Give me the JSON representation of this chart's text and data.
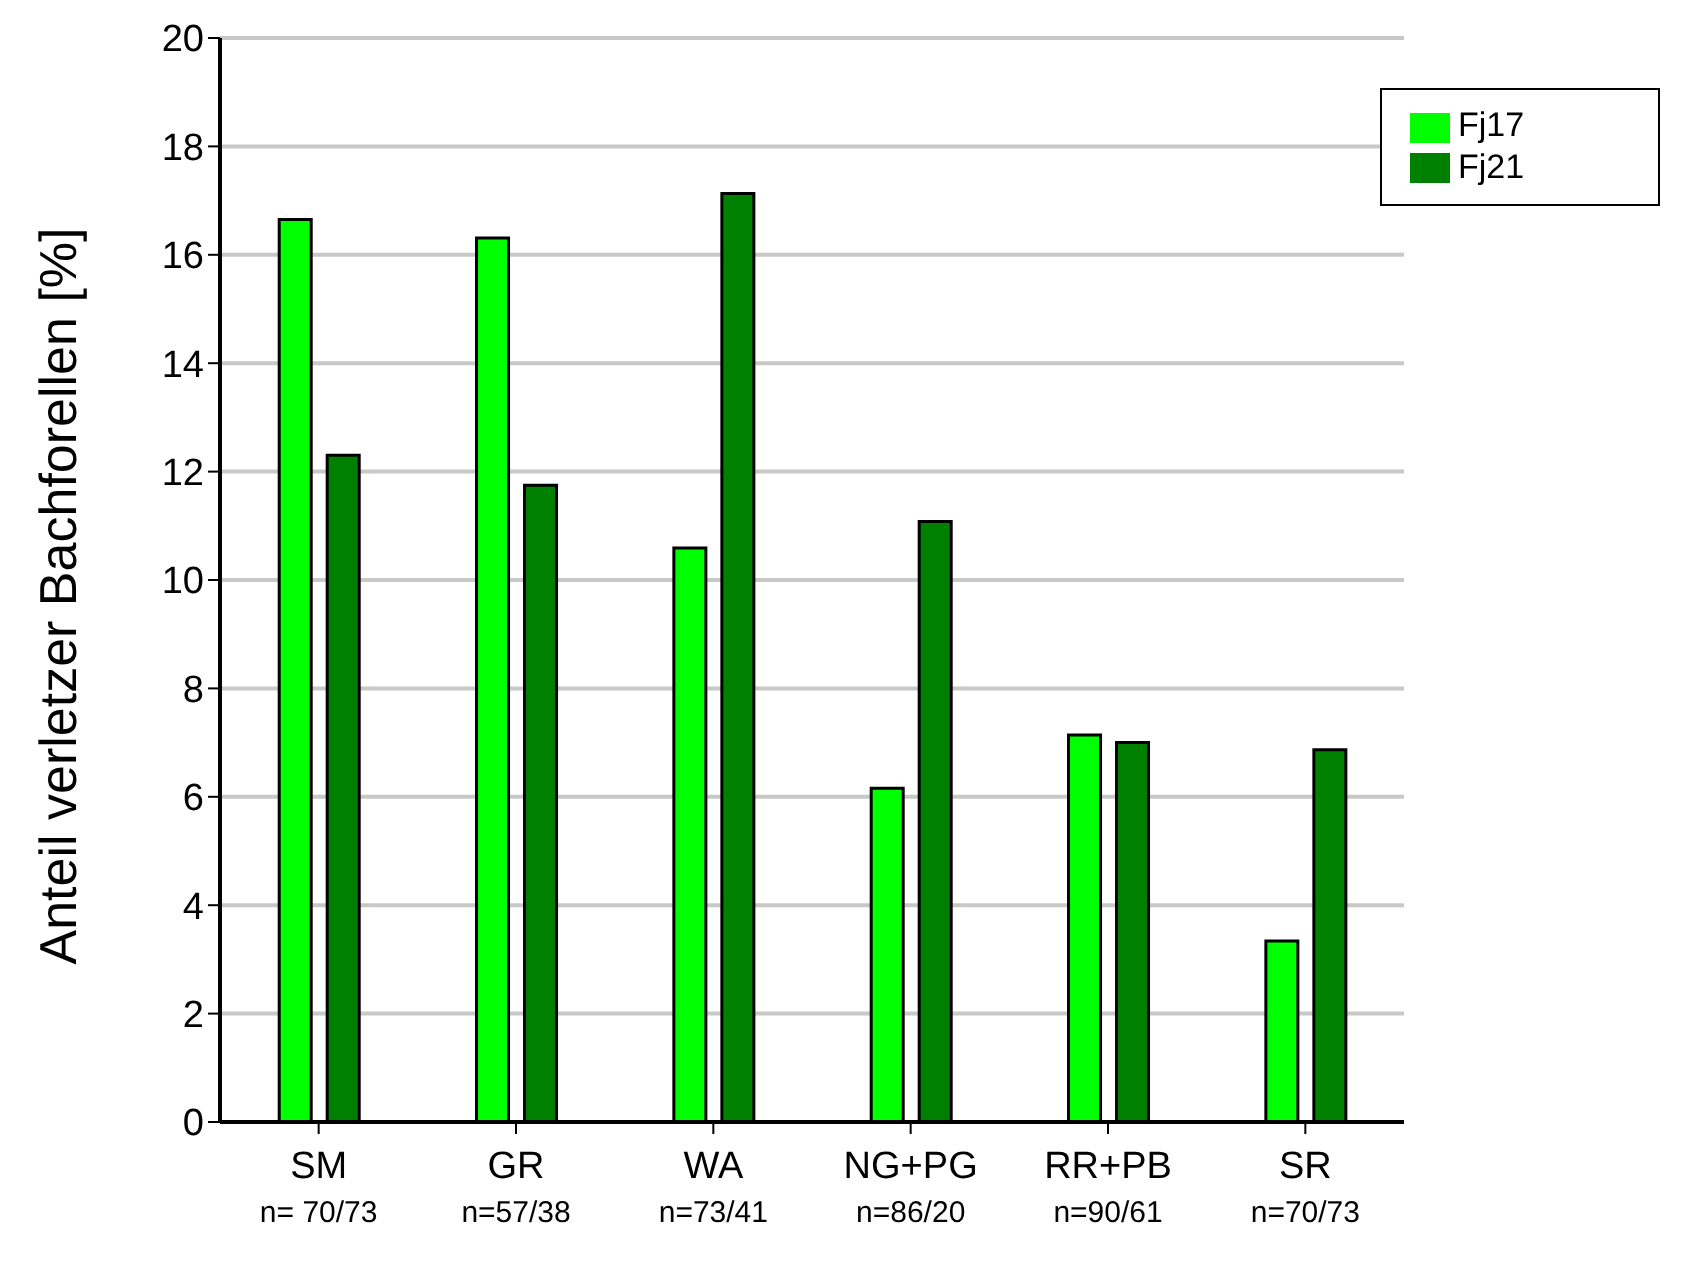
{
  "chart_data": {
    "type": "bar",
    "ylabel": "Anteil verletzer Bachforellen [%]",
    "categories": [
      "SM\nn= 70/73",
      "GR\nn=57/38",
      "WA\nn=73/41",
      "NG+PG\nn=86/20",
      "RR+PB\nn=90/61",
      "SR\nn=70/73"
    ],
    "series": [
      {
        "name": "Fj17",
        "color": "#00ff00",
        "values": [
          16.65,
          16.31,
          10.59,
          6.16,
          7.14,
          3.34
        ]
      },
      {
        "name": "Fj21",
        "color": "#008000",
        "values": [
          12.3,
          11.75,
          17.13,
          11.08,
          7.0,
          6.87
        ]
      }
    ],
    "ylim": [
      0,
      20
    ],
    "yticks": [
      0,
      2,
      4,
      6,
      8,
      10,
      12,
      14,
      16,
      18,
      20
    ],
    "grid": "y",
    "legend": "top right"
  }
}
